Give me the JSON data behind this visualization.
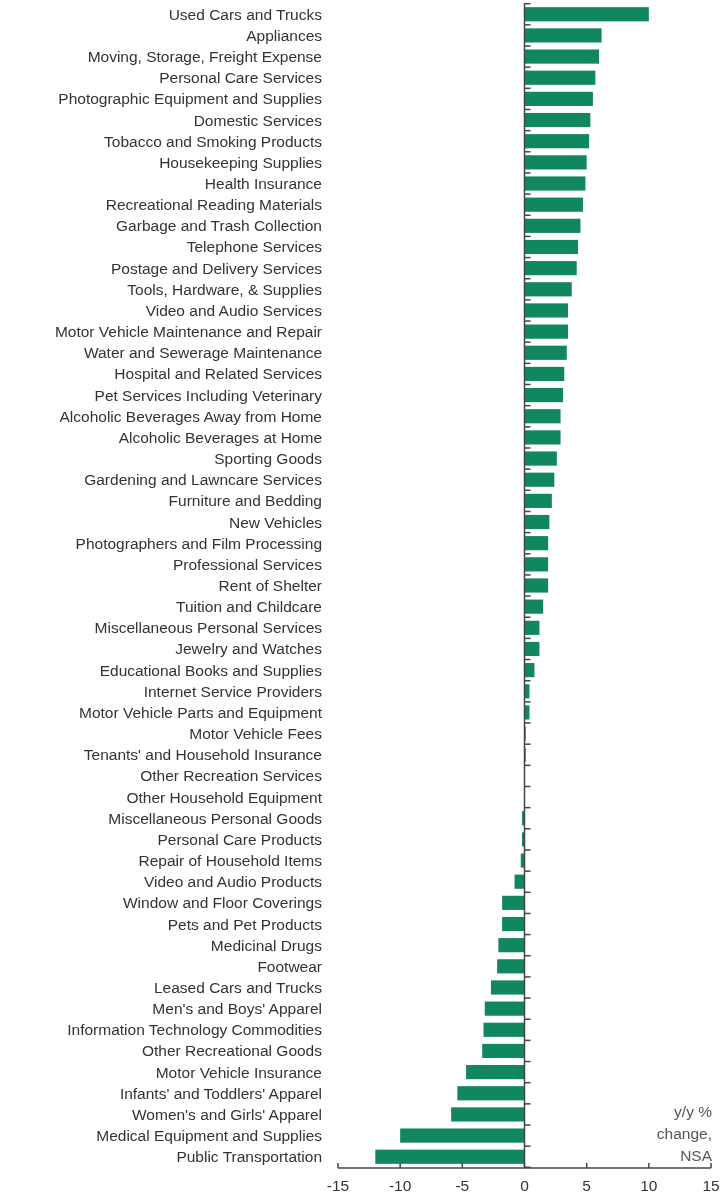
{
  "chart_data": {
    "type": "bar",
    "orientation": "horizontal",
    "color": "#10875c",
    "categories": [
      "Used Cars and Trucks",
      "Appliances",
      "Moving, Storage, Freight Expense",
      "Personal Care Services",
      "Photographic Equipment and Supplies",
      "Domestic Services",
      "Tobacco and Smoking Products",
      "Housekeeping Supplies",
      "Health Insurance",
      "Recreational Reading Materials",
      "Garbage and Trash Collection",
      "Telephone Services",
      "Postage and Delivery Services",
      "Tools, Hardware, & Supplies",
      "Video and Audio Services",
      "Motor Vehicle Maintenance and Repair",
      "Water and Sewerage Maintenance",
      "Hospital and Related Services",
      "Pet Services Including Veterinary",
      "Alcoholic Beverages Away from Home",
      "Alcoholic Beverages at Home",
      "Sporting Goods",
      "Gardening and Lawncare Services",
      "Furniture and Bedding",
      "New Vehicles",
      "Photographers and Film Processing",
      "Professional Services",
      "Rent of Shelter",
      "Tuition and Childcare",
      "Miscellaneous Personal Services",
      "Jewelry and Watches",
      "Educational Books and Supplies",
      "Internet Service Providers",
      "Motor Vehicle Parts and Equipment",
      "Motor Vehicle Fees",
      "Tenants' and Household Insurance",
      "Other Recreation Services",
      "Other Household Equipment",
      "Miscellaneous Personal Goods",
      "Personal Care Products",
      "Repair of Household Items",
      "Video and Audio Products",
      "Window and Floor Coverings",
      "Pets and Pet Products",
      "Medicinal Drugs",
      "Footwear",
      "Leased Cars and Trucks",
      "Men's and Boys' Apparel",
      "Information Technology Commodities",
      "Other Recreational Goods",
      "Motor Vehicle Insurance",
      "Infants' and Toddlers' Apparel",
      "Women's and Girls' Apparel",
      "Medical Equipment and Supplies",
      "Public Transportation"
    ],
    "values": [
      10.0,
      6.2,
      6.0,
      5.7,
      5.5,
      5.3,
      5.2,
      5.0,
      4.9,
      4.7,
      4.5,
      4.3,
      4.2,
      3.8,
      3.5,
      3.5,
      3.4,
      3.2,
      3.1,
      2.9,
      2.9,
      2.6,
      2.4,
      2.2,
      2.0,
      1.9,
      1.9,
      1.9,
      1.5,
      1.2,
      1.2,
      0.8,
      0.4,
      0.4,
      0.1,
      0.1,
      0,
      0,
      -0.2,
      -0.2,
      -0.3,
      -0.8,
      -1.8,
      -1.8,
      -2.1,
      -2.2,
      -2.7,
      -3.2,
      -3.3,
      -3.4,
      -4.7,
      -5.4,
      -5.9,
      -10.0,
      -12.0
    ],
    "xlim": [
      -15,
      15
    ],
    "xticks": [
      -15,
      -10,
      -5,
      0,
      5,
      10,
      15
    ],
    "annotations": [
      "y/y % change, NSA"
    ]
  }
}
